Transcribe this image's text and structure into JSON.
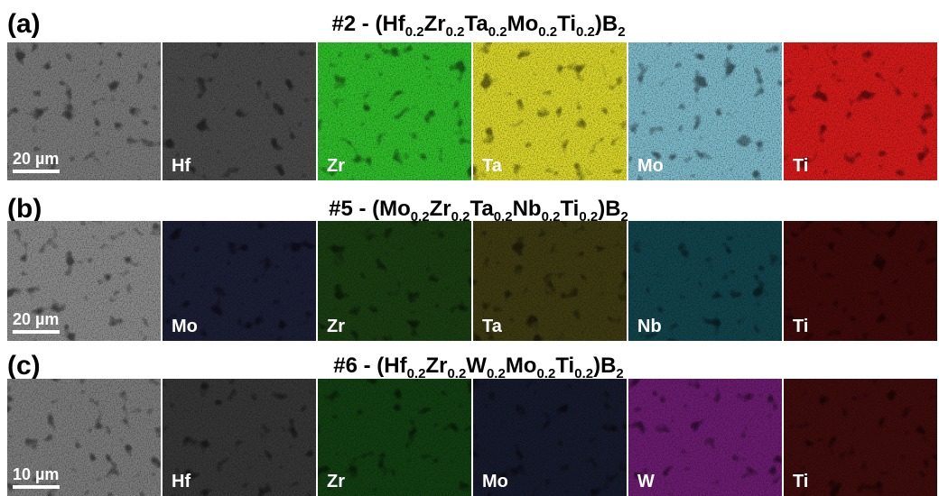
{
  "rows": [
    {
      "label": "(a)",
      "title": [
        {
          "text": "#2 - (Hf"
        },
        {
          "text": "0.2",
          "sub": true
        },
        {
          "text": "Zr"
        },
        {
          "text": "0.2",
          "sub": true
        },
        {
          "text": "Ta"
        },
        {
          "text": "0.2",
          "sub": true
        },
        {
          "text": "Mo"
        },
        {
          "text": "0.2",
          "sub": true
        },
        {
          "text": "Ti"
        },
        {
          "text": "0.2",
          "sub": true
        },
        {
          "text": ")B"
        },
        {
          "text": "2",
          "sub": true
        }
      ],
      "panels": [
        {
          "scale_bar": "20 µm",
          "color": "#7a7a7a"
        },
        {
          "element": "Hf",
          "color": "#4a4a4a"
        },
        {
          "element": "Zr",
          "color": "#2fbf2a"
        },
        {
          "element": "Ta",
          "color": "#dcd82a"
        },
        {
          "element": "Mo",
          "color": "#7fbccc"
        },
        {
          "element": "Ti",
          "color": "#d81a1a"
        }
      ]
    },
    {
      "label": "(b)",
      "title": [
        {
          "text": "#5 - (Mo"
        },
        {
          "text": "0.2",
          "sub": true
        },
        {
          "text": "Zr"
        },
        {
          "text": "0.2",
          "sub": true
        },
        {
          "text": "Ta"
        },
        {
          "text": "0.2",
          "sub": true
        },
        {
          "text": "Nb"
        },
        {
          "text": "0.2",
          "sub": true
        },
        {
          "text": "Ti"
        },
        {
          "text": "0.2",
          "sub": true
        },
        {
          "text": ")B"
        },
        {
          "text": "2",
          "sub": true
        }
      ],
      "panels": [
        {
          "scale_bar": "20 µm",
          "color": "#8a8a8a"
        },
        {
          "element": "Mo",
          "color": "#1c1e34"
        },
        {
          "element": "Zr",
          "color": "#1a3d12"
        },
        {
          "element": "Ta",
          "color": "#3d3a12"
        },
        {
          "element": "Nb",
          "color": "#12444c"
        },
        {
          "element": "Ti",
          "color": "#3e0a0a"
        }
      ]
    },
    {
      "label": "(c)",
      "title": [
        {
          "text": "#6 - (Hf"
        },
        {
          "text": "0.2",
          "sub": true
        },
        {
          "text": "Zr"
        },
        {
          "text": "0.2",
          "sub": true
        },
        {
          "text": "W"
        },
        {
          "text": "0.2",
          "sub": true
        },
        {
          "text": "Mo"
        },
        {
          "text": "0.2",
          "sub": true
        },
        {
          "text": "Ti"
        },
        {
          "text": "0.2",
          "sub": true
        },
        {
          "text": ")B"
        },
        {
          "text": "2",
          "sub": true
        }
      ],
      "panels": [
        {
          "scale_bar": "10 µm",
          "color": "#7c7c7c"
        },
        {
          "element": "Hf",
          "color": "#363636"
        },
        {
          "element": "Zr",
          "color": "#123f12"
        },
        {
          "element": "Mo",
          "color": "#171a2c"
        },
        {
          "element": "W",
          "color": "#6c1c70"
        },
        {
          "element": "Ti",
          "color": "#3e0c0c"
        }
      ]
    }
  ]
}
